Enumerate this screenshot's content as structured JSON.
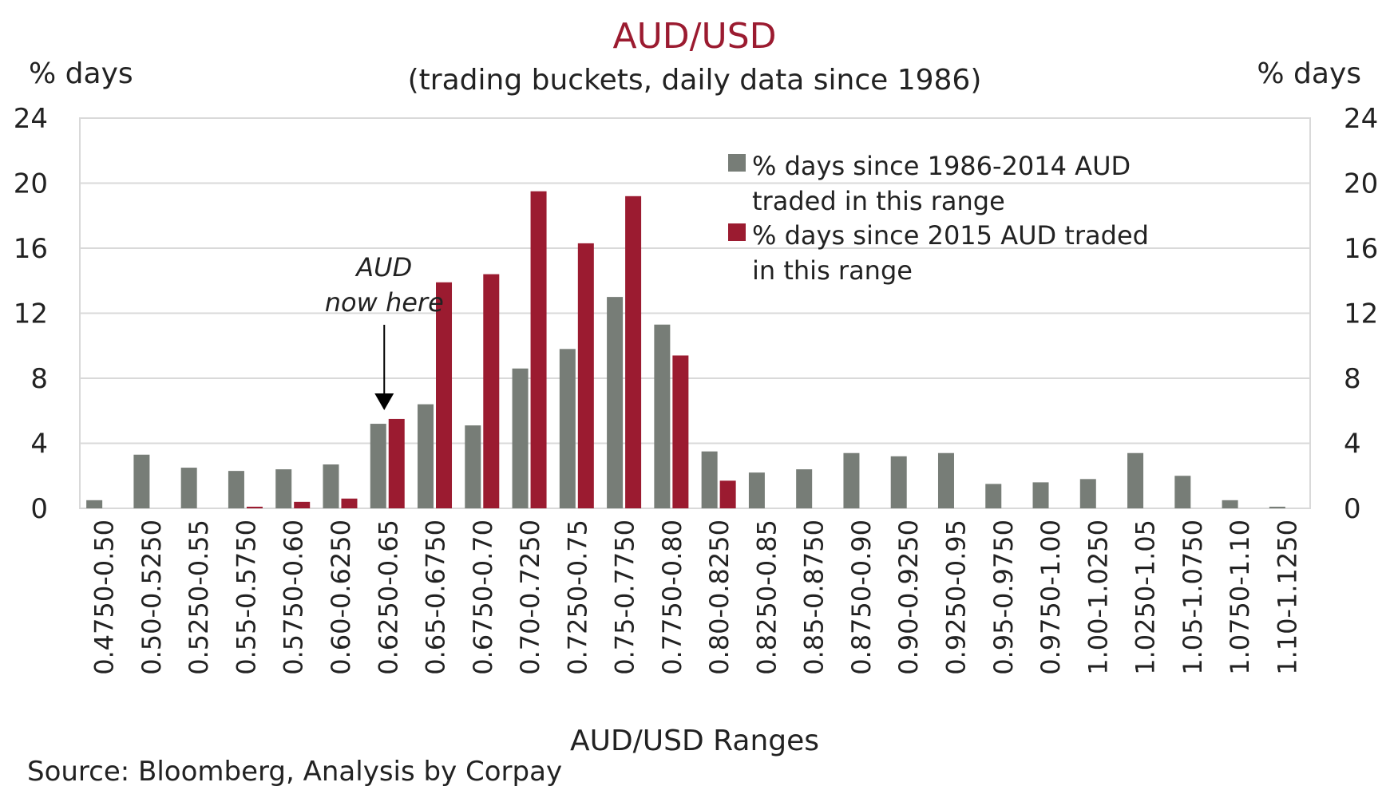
{
  "chart_data": {
    "type": "bar",
    "title": "AUD/USD",
    "subtitle": "(trading buckets, daily data since 1986)",
    "ylabel_left": "% days",
    "ylabel_right": "% days",
    "xlabel": "AUD/USD Ranges",
    "ylim": [
      0,
      24
    ],
    "yticks": [
      0,
      4,
      8,
      12,
      16,
      20,
      24
    ],
    "grid": true,
    "legend_position": "top-right",
    "categories": [
      "0.4750-0.50",
      "0.50-0.5250",
      "0.5250-0.55",
      "0.55-0.5750",
      "0.5750-0.60",
      "0.60-0.6250",
      "0.6250-0.65",
      "0.65-0.6750",
      "0.6750-0.70",
      "0.70-0.7250",
      "0.7250-0.75",
      "0.75-0.7750",
      "0.7750-0.80",
      "0.80-0.8250",
      "0.8250-0.85",
      "0.85-0.8750",
      "0.8750-0.90",
      "0.90-0.9250",
      "0.9250-0.95",
      "0.95-0.9750",
      "0.9750-1.00",
      "1.00-1.0250",
      "1.0250-1.05",
      "1.05-1.0750",
      "1.0750-1.10",
      "1.10-1.1250"
    ],
    "series": [
      {
        "name": "% days since 1986-2014 AUD traded in this range",
        "legend_lines": [
          "% days since 1986-2014 AUD",
          "traded in this range"
        ],
        "color": "#777d77",
        "values": [
          0.5,
          3.3,
          2.5,
          2.3,
          2.4,
          2.7,
          5.2,
          6.4,
          5.1,
          8.6,
          9.8,
          13.0,
          11.3,
          3.5,
          2.2,
          2.4,
          3.4,
          3.2,
          3.4,
          1.5,
          1.6,
          1.8,
          3.4,
          2.0,
          0.5,
          0.1
        ]
      },
      {
        "name": "% days since 2015 AUD traded in this range",
        "legend_lines": [
          "% days since 2015 AUD traded",
          "in this range"
        ],
        "color": "#9b1b30",
        "values": [
          0,
          0,
          0,
          0.1,
          0.4,
          0.6,
          5.5,
          13.9,
          14.4,
          19.5,
          16.3,
          19.2,
          9.4,
          1.7,
          0,
          0,
          0,
          0,
          0,
          0,
          0,
          0,
          0,
          0,
          0,
          0
        ]
      }
    ],
    "annotation": {
      "lines": [
        "AUD",
        "now here"
      ],
      "category": "0.6250-0.65"
    }
  },
  "source": "Source: Bloomberg, Analysis by Corpay",
  "colors": {
    "gridline": "#d9d9d9",
    "frame": "#d9d9d9"
  }
}
